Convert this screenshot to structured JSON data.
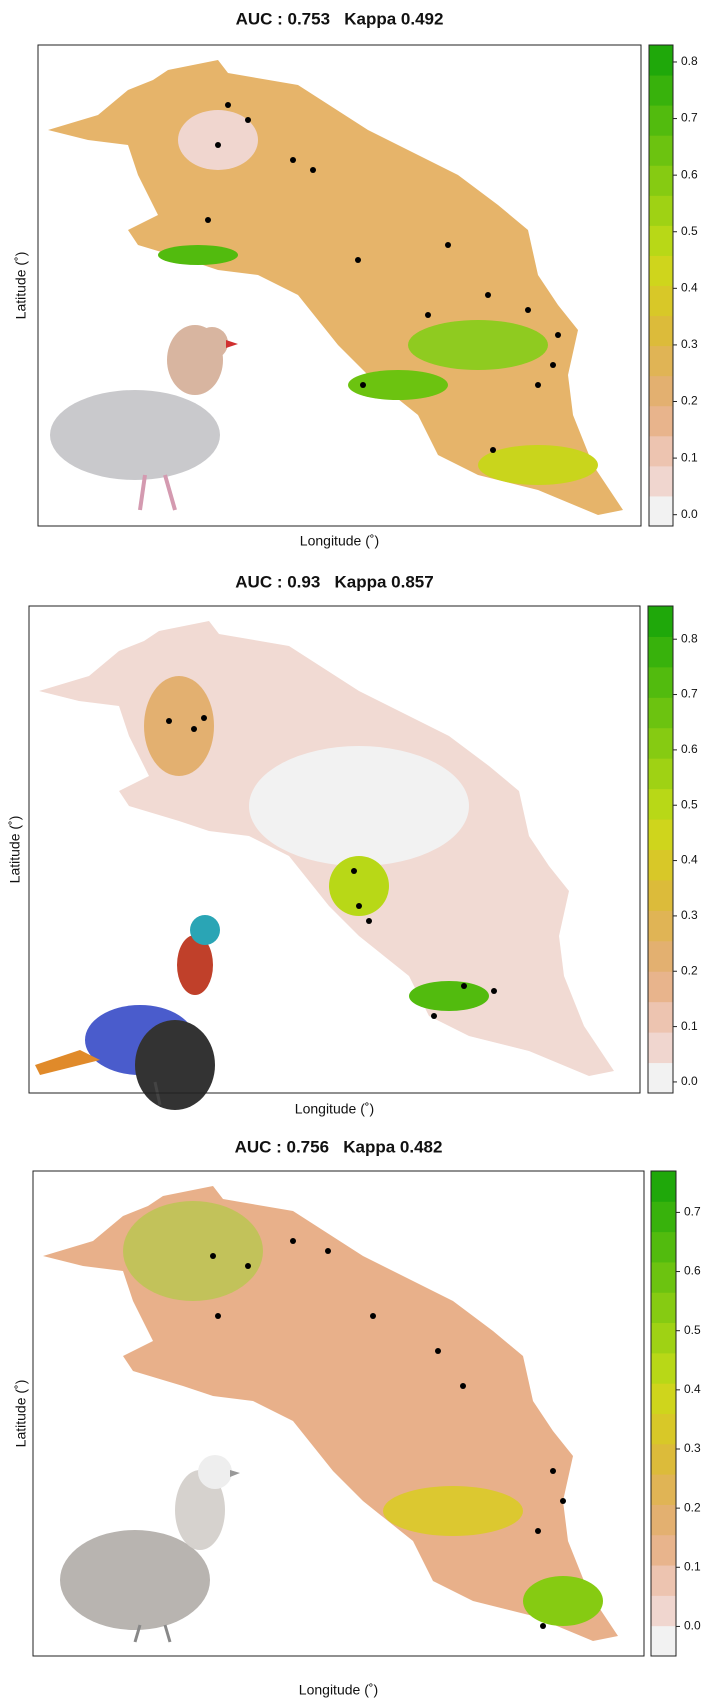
{
  "panels": [
    {
      "title": "AUC : 0.753   Kappa 0.492",
      "x_label": "Longitude (˚)",
      "y_label": "Latitude (˚)",
      "colorbar": {
        "clim": [
          -0.02,
          0.83
        ],
        "ticks": [
          {
            "value": 0,
            "label": "0.0"
          },
          0.1,
          0.2,
          0.3,
          0.4,
          0.5,
          0.6,
          0.7,
          0.8
        ],
        "colors": [
          "#f2f2f2",
          "#f0d6cf",
          "#edc4b0",
          "#e8b48c",
          "#e3b070",
          "#e0b455",
          "#dcbb3a",
          "#d8c828",
          "#cfd51c",
          "#b8d817",
          "#9fd214",
          "#86cb12",
          "#6cc310",
          "#52bb0e",
          "#38b20c",
          "#1fa80a"
        ]
      }
    },
    {
      "title": "AUC : 0.93   Kappa 0.857",
      "x_label": "Longitude (˚)",
      "y_label": "Latitude (˚)",
      "colorbar": {
        "clim": [
          -0.02,
          0.86
        ],
        "ticks": [
          {
            "value": 0,
            "label": "0.0"
          },
          0.1,
          0.2,
          0.3,
          0.4,
          0.5,
          0.6,
          0.7,
          0.8
        ],
        "colors": [
          "#f2f2f2",
          "#f0d6cf",
          "#edc4b0",
          "#e8b48c",
          "#e3b070",
          "#e0b455",
          "#dcbb3a",
          "#d8c828",
          "#cfd51c",
          "#b8d817",
          "#9fd214",
          "#86cb12",
          "#6cc310",
          "#52bb0e",
          "#38b20c",
          "#1fa80a"
        ]
      }
    },
    {
      "title": "AUC : 0.756   Kappa 0.482",
      "x_label": "Longitude (˚)",
      "y_label": "Latitude (˚)",
      "colorbar": {
        "clim": [
          -0.05,
          0.77
        ],
        "ticks": [
          {
            "value": 0,
            "label": "0.0"
          },
          0.1,
          0.2,
          0.3,
          0.4,
          0.5,
          0.6,
          0.7
        ],
        "colors": [
          "#f2f2f2",
          "#f0d6cf",
          "#edc4b0",
          "#e8b48c",
          "#e3b070",
          "#e0b455",
          "#dcbb3a",
          "#d8c828",
          "#cfd51c",
          "#b8d817",
          "#9fd214",
          "#86cb12",
          "#6cc310",
          "#52bb0e",
          "#38b20c",
          "#1fa80a"
        ]
      }
    }
  ]
}
